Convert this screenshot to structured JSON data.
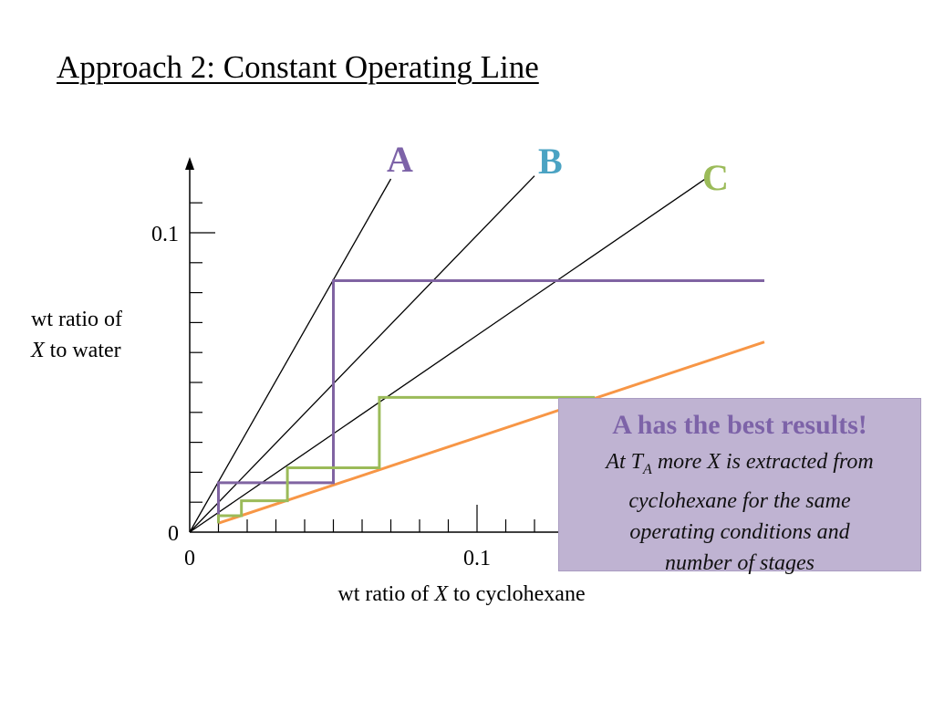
{
  "slide": {
    "title": "Approach 2: Constant Operating Line"
  },
  "callout": {
    "heading": "A has the best results!",
    "line1_prefix": "At T",
    "line1_subscript": "A",
    "line1_suffix": " more X is extracted from",
    "line2": "cyclohexane for the same",
    "line3": "operating conditions and",
    "line4": "number of stages",
    "background_color": "#bfb3d2",
    "heading_color": "#7d63a8"
  },
  "chart_data": {
    "type": "line",
    "title": "",
    "xlabel_prefix": "wt ratio of ",
    "xlabel_italic": "X",
    "xlabel_suffix": " to cyclohexane",
    "ylabel_line1": "wt ratio of",
    "ylabel_italic": "X",
    "ylabel_suffix": " to water",
    "xlim": [
      0,
      0.2
    ],
    "ylim": [
      0,
      0.12
    ],
    "x_ticks": [
      {
        "value": 0,
        "label": "0"
      },
      {
        "value": 0.1,
        "label": "0.1"
      }
    ],
    "y_ticks": [
      {
        "value": 0,
        "label": "0"
      },
      {
        "value": 0.1,
        "label": "0.1"
      }
    ],
    "x_minor_step": 0.01,
    "y_minor_step": 0.01,
    "grid": false,
    "series": [
      {
        "name": "A",
        "kind": "equilibrium",
        "color": "#000000",
        "label_color": "#7d63a8",
        "points": [
          [
            0,
            0
          ],
          [
            0.07,
            0.118
          ]
        ]
      },
      {
        "name": "B",
        "kind": "equilibrium",
        "color": "#000000",
        "label_color": "#4ba3c3",
        "points": [
          [
            0,
            0
          ],
          [
            0.12,
            0.119
          ]
        ]
      },
      {
        "name": "C",
        "kind": "equilibrium",
        "color": "#000000",
        "label_color": "#9bbb59",
        "points": [
          [
            0,
            0
          ],
          [
            0.181,
            0.119
          ]
        ]
      },
      {
        "name": "operating line",
        "kind": "operating",
        "color": "#f79646",
        "points": [
          [
            0.01,
            0.003
          ],
          [
            0.2,
            0.0635
          ]
        ]
      },
      {
        "name": "stages A",
        "kind": "stages",
        "color": "#8064a2",
        "points": [
          [
            0.01,
            0.003
          ],
          [
            0.01,
            0.0165
          ],
          [
            0.05,
            0.0165
          ],
          [
            0.05,
            0.084
          ],
          [
            0.2,
            0.084
          ]
        ]
      },
      {
        "name": "stages C",
        "kind": "stages",
        "color": "#9bbb59",
        "points": [
          [
            0.01,
            0.003
          ],
          [
            0.01,
            0.0055
          ],
          [
            0.018,
            0.0055
          ],
          [
            0.018,
            0.0105
          ],
          [
            0.034,
            0.0105
          ],
          [
            0.034,
            0.0215
          ],
          [
            0.066,
            0.0215
          ],
          [
            0.066,
            0.045
          ],
          [
            0.141,
            0.045
          ]
        ]
      }
    ]
  }
}
